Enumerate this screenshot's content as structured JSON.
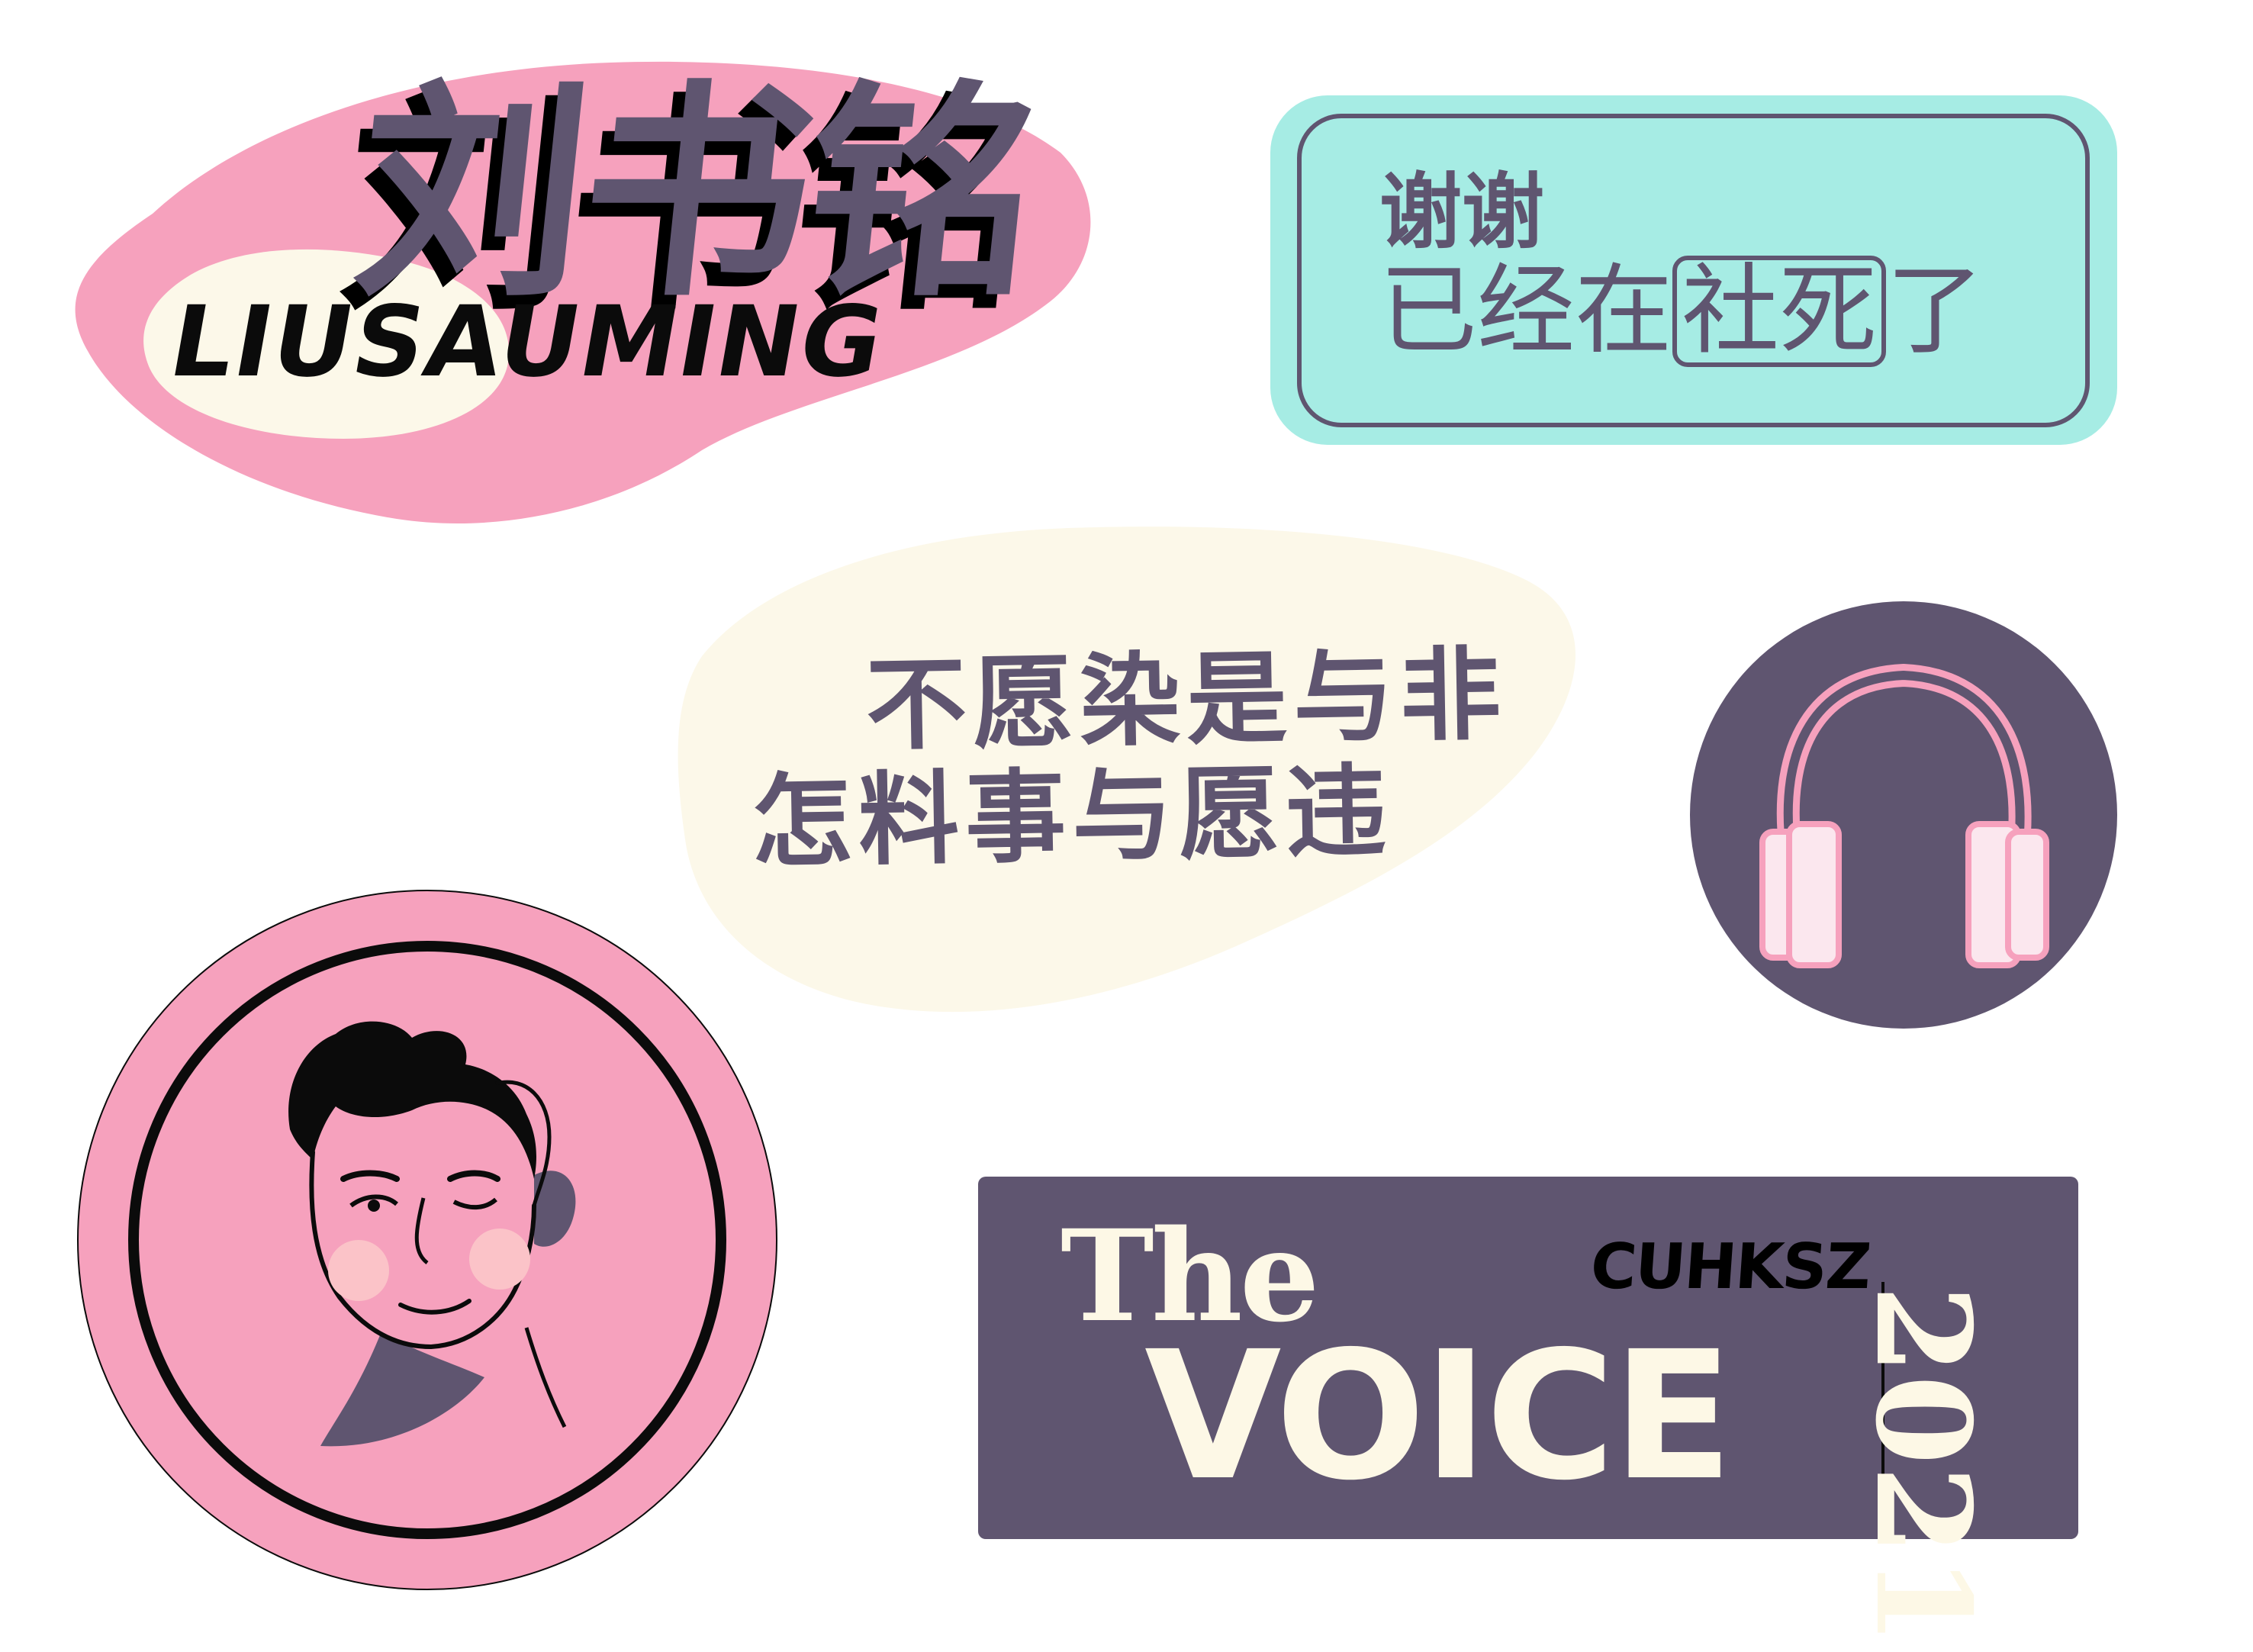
{
  "colors": {
    "pink": "#f6a1bd",
    "cream": "#fcf8e9",
    "mint": "#a6ece4",
    "purple": "#5f5570",
    "black": "#0b0b0b"
  },
  "sticker_name": {
    "chinese": "刘书铭",
    "english": "LIUSAUMING"
  },
  "sticker_thanks": {
    "line1": "谢谢",
    "line2_before": "已经在",
    "line2_boxed": "社死",
    "line2_after": "了"
  },
  "sticker_lyrics": {
    "line1": "不愿染是与非",
    "line2": "怎料事与愿违"
  },
  "sticker_headphones": {
    "icon": "headphones-icon"
  },
  "sticker_portrait": {
    "icon": "man-portrait-icon"
  },
  "sticker_voice": {
    "the": "The",
    "cuhksz": "CUHKSZ",
    "voice": "VOICE",
    "year": "2021"
  }
}
